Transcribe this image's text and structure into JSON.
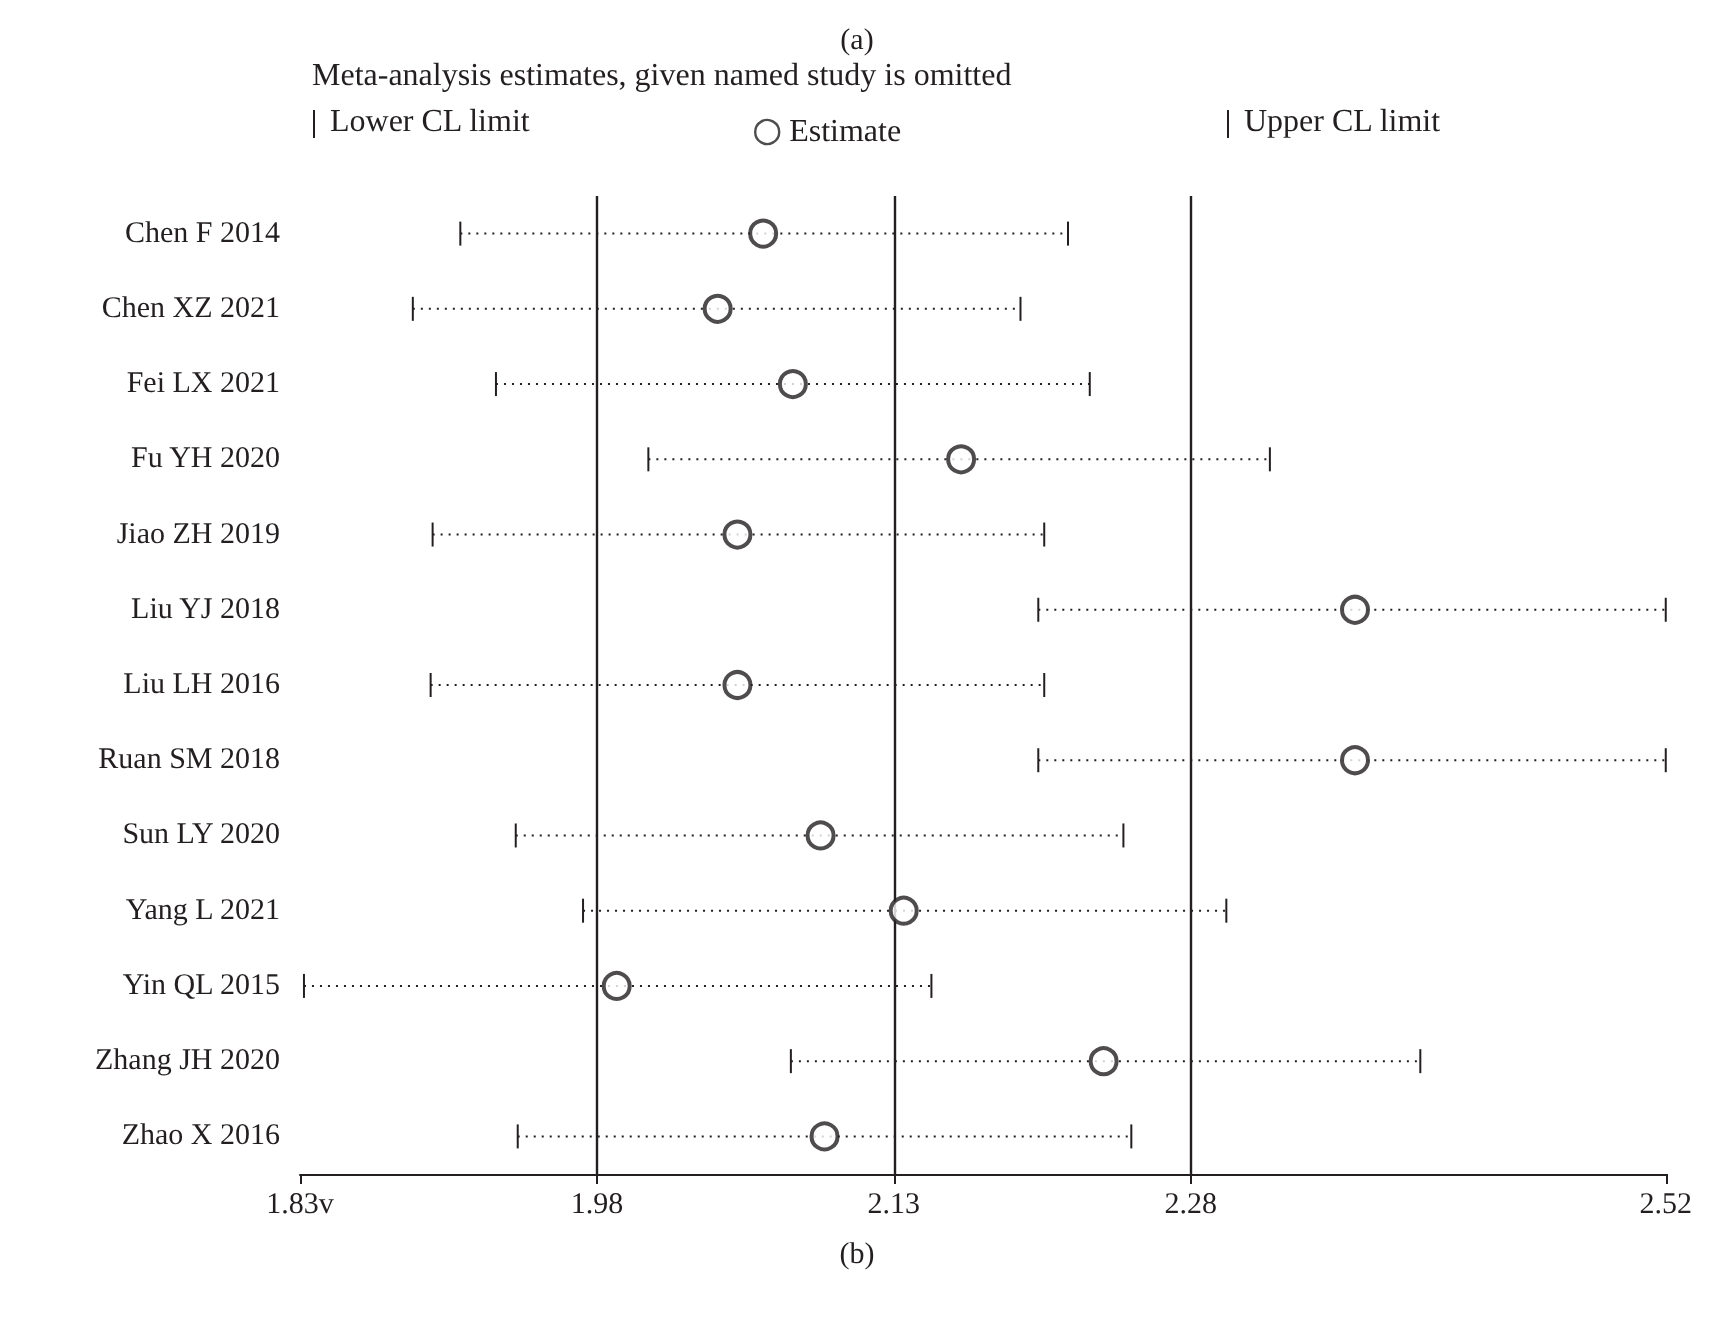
{
  "chart_data": {
    "type": "scatter",
    "title": "(a)",
    "legend_title": "Meta-analysis estimates, given named study is omitted",
    "categories": [
      "Chen F 2014",
      "Chen XZ 2021",
      "Fei LX 2021",
      "Fu YH 2020",
      "Jiao ZH 2019",
      "Liu YJ 2018",
      "Liu LH 2016",
      "Ruan SM 2018",
      "Sun LY 2020",
      "Yang L 2021",
      "Yin QL 2015",
      "Zhang JH 2020",
      "Zhao X 2016"
    ],
    "series": [
      {
        "name": "Estimate",
        "color": "#231f20",
        "values": [
          2.064,
          2.041,
          2.079,
          2.164,
          2.051,
          2.363,
          2.051,
          2.363,
          2.093,
          2.135,
          1.99,
          2.236,
          2.095
        ],
        "errors": [
          [
            1.911,
            2.218
          ],
          [
            1.887,
            2.194
          ],
          [
            1.929,
            2.229
          ],
          [
            2.006,
            2.32
          ],
          [
            1.897,
            2.206
          ],
          [
            2.203,
            2.52
          ],
          [
            1.896,
            2.206
          ],
          [
            2.203,
            2.52
          ],
          [
            1.939,
            2.246
          ],
          [
            1.973,
            2.298
          ],
          [
            1.832,
            2.149
          ],
          [
            2.078,
            2.396
          ],
          [
            1.94,
            2.25
          ]
        ]
      }
    ],
    "xlim": [
      1.83,
      2.52
    ],
    "xticks": [
      {
        "value": 1.83,
        "label": "1.83v"
      },
      1.98,
      2.13,
      2.28,
      2.52
    ],
    "ref_lines": [
      {
        "axis": "x",
        "value": 1.98
      },
      {
        "axis": "x",
        "value": 2.13
      },
      {
        "axis": "x",
        "value": 2.28
      }
    ],
    "annotations": [
      "Lower CL limit",
      "Upper CL limit",
      "(b)"
    ],
    "orientation": "horizontal",
    "marker": "circle",
    "line_style": "dotted",
    "legend": "top",
    "grid": false
  }
}
